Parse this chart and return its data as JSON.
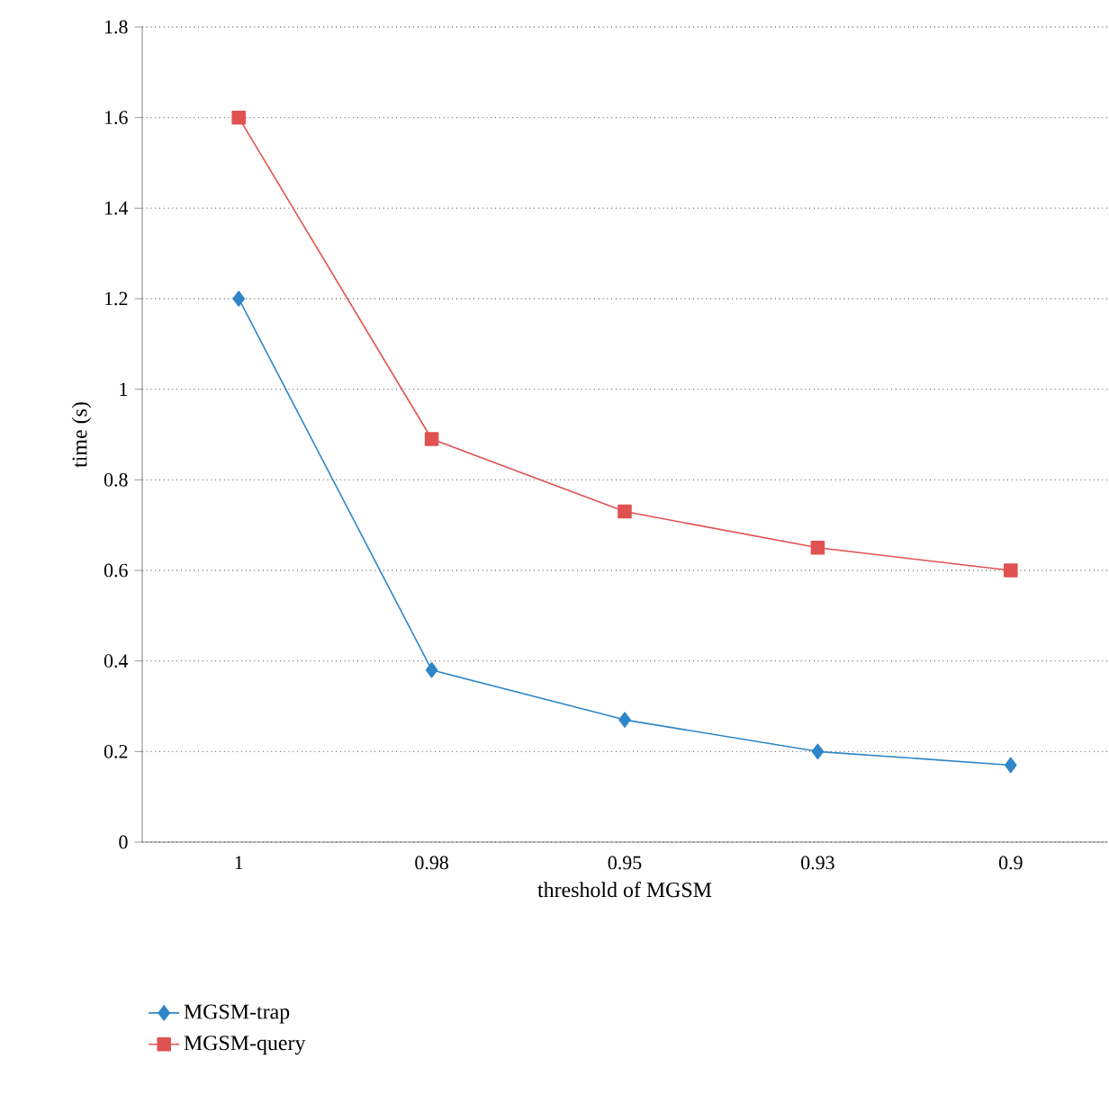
{
  "chart_data": {
    "type": "line",
    "xlabel": "threshold of MGSM",
    "ylabel": "time (s)",
    "categories": [
      "1",
      "0.98",
      "0.95",
      "0.93",
      "0.9"
    ],
    "series": [
      {
        "name": "MGSM-trap",
        "color": "#2e86c8",
        "marker": "diamond",
        "values": [
          1.2,
          0.38,
          0.27,
          0.2,
          0.17
        ]
      },
      {
        "name": "MGSM-query",
        "color": "#e05252",
        "marker": "square",
        "values": [
          1.6,
          0.89,
          0.73,
          0.65,
          0.6
        ]
      }
    ],
    "ylim": [
      0,
      1.8
    ],
    "yticks": [
      0,
      0.2,
      0.4,
      0.6,
      0.8,
      1,
      1.2,
      1.4,
      1.6,
      1.8
    ],
    "grid": "y",
    "legend": "bottom left",
    "line_style": "solid"
  }
}
